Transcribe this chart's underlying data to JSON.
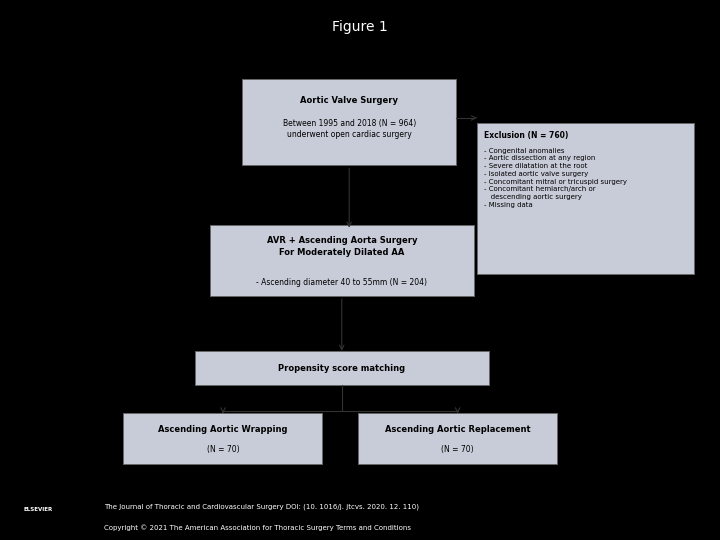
{
  "title": "Figure 1",
  "bg_color": "#000000",
  "panel_bg": "#ffffff",
  "box_fill": "#c8ccd8",
  "box_edge": "#666666",
  "footer_line1": "The Journal of Thoracic and Cardiovascular Surgery DOI: (10. 1016/j. jtcvs. 2020. 12. 110)",
  "footer_line2": "Copyright © 2021 The American Association for Thoracic Surgery Terms and Conditions"
}
